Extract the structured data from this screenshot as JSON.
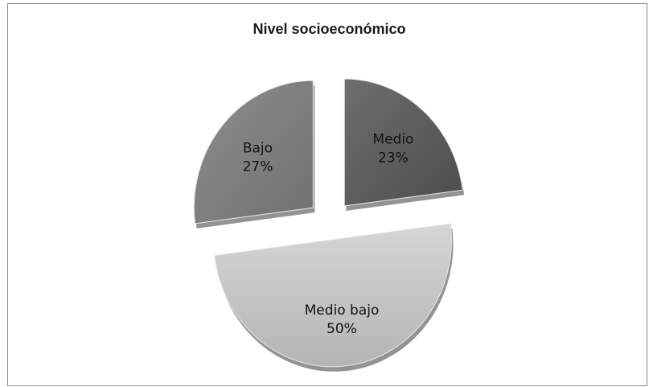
{
  "chart_data": {
    "type": "pie",
    "title": "Nivel socioeconómico",
    "categories": [
      "Medio",
      "Medio bajo",
      "Bajo"
    ],
    "values": [
      23,
      50,
      27
    ],
    "labels": [
      {
        "name": "Medio",
        "pct": "23%"
      },
      {
        "name": "Medio bajo",
        "pct": "50%"
      },
      {
        "name": "Bajo",
        "pct": "27%"
      }
    ],
    "colors": [
      "#5a5a5a",
      "#c4c4c4",
      "#7f7f7f"
    ],
    "exploded": true,
    "legend": "none",
    "style": "3d-tilted"
  }
}
